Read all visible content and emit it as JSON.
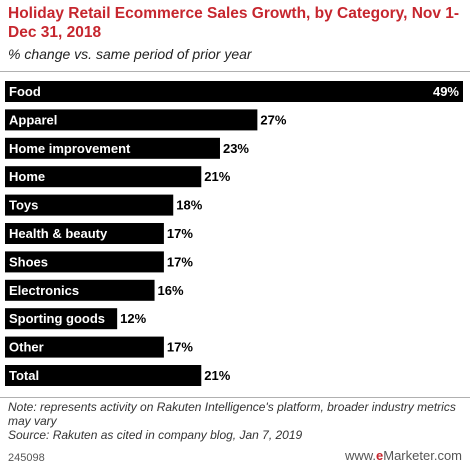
{
  "header": {
    "title": "Holiday Retail Ecommerce Sales Growth, by Category, Nov 1-Dec 31, 2018",
    "subtitle": "% change vs. same period of prior year"
  },
  "chart_data": {
    "type": "bar",
    "orientation": "horizontal",
    "categories": [
      "Food",
      "Apparel",
      "Home improvement",
      "Home",
      "Toys",
      "Health & beauty",
      "Shoes",
      "Electronics",
      "Sporting goods",
      "Other",
      "Total"
    ],
    "values": [
      49,
      27,
      23,
      21,
      18,
      17,
      17,
      16,
      12,
      17,
      21
    ],
    "value_labels": [
      "49%",
      "27%",
      "23%",
      "21%",
      "18%",
      "17%",
      "17%",
      "16%",
      "12%",
      "17%",
      "21%"
    ],
    "bar_color": "#000000",
    "label_color": "#ffffff",
    "xlim": [
      0,
      49
    ],
    "grid": false
  },
  "footer": {
    "note": "Note: represents activity on Rakuten Intelligence's platform, broader industry metrics may vary",
    "source": "Source: Rakuten as cited in company blog, Jan 7, 2019",
    "chart_id": "245098",
    "brand_prefix": "www.",
    "brand_e": "e",
    "brand_name": "Marketer",
    "brand_suffix": ".com"
  },
  "colors": {
    "accent": "#c6262e",
    "rule": "#b0b0b0"
  }
}
